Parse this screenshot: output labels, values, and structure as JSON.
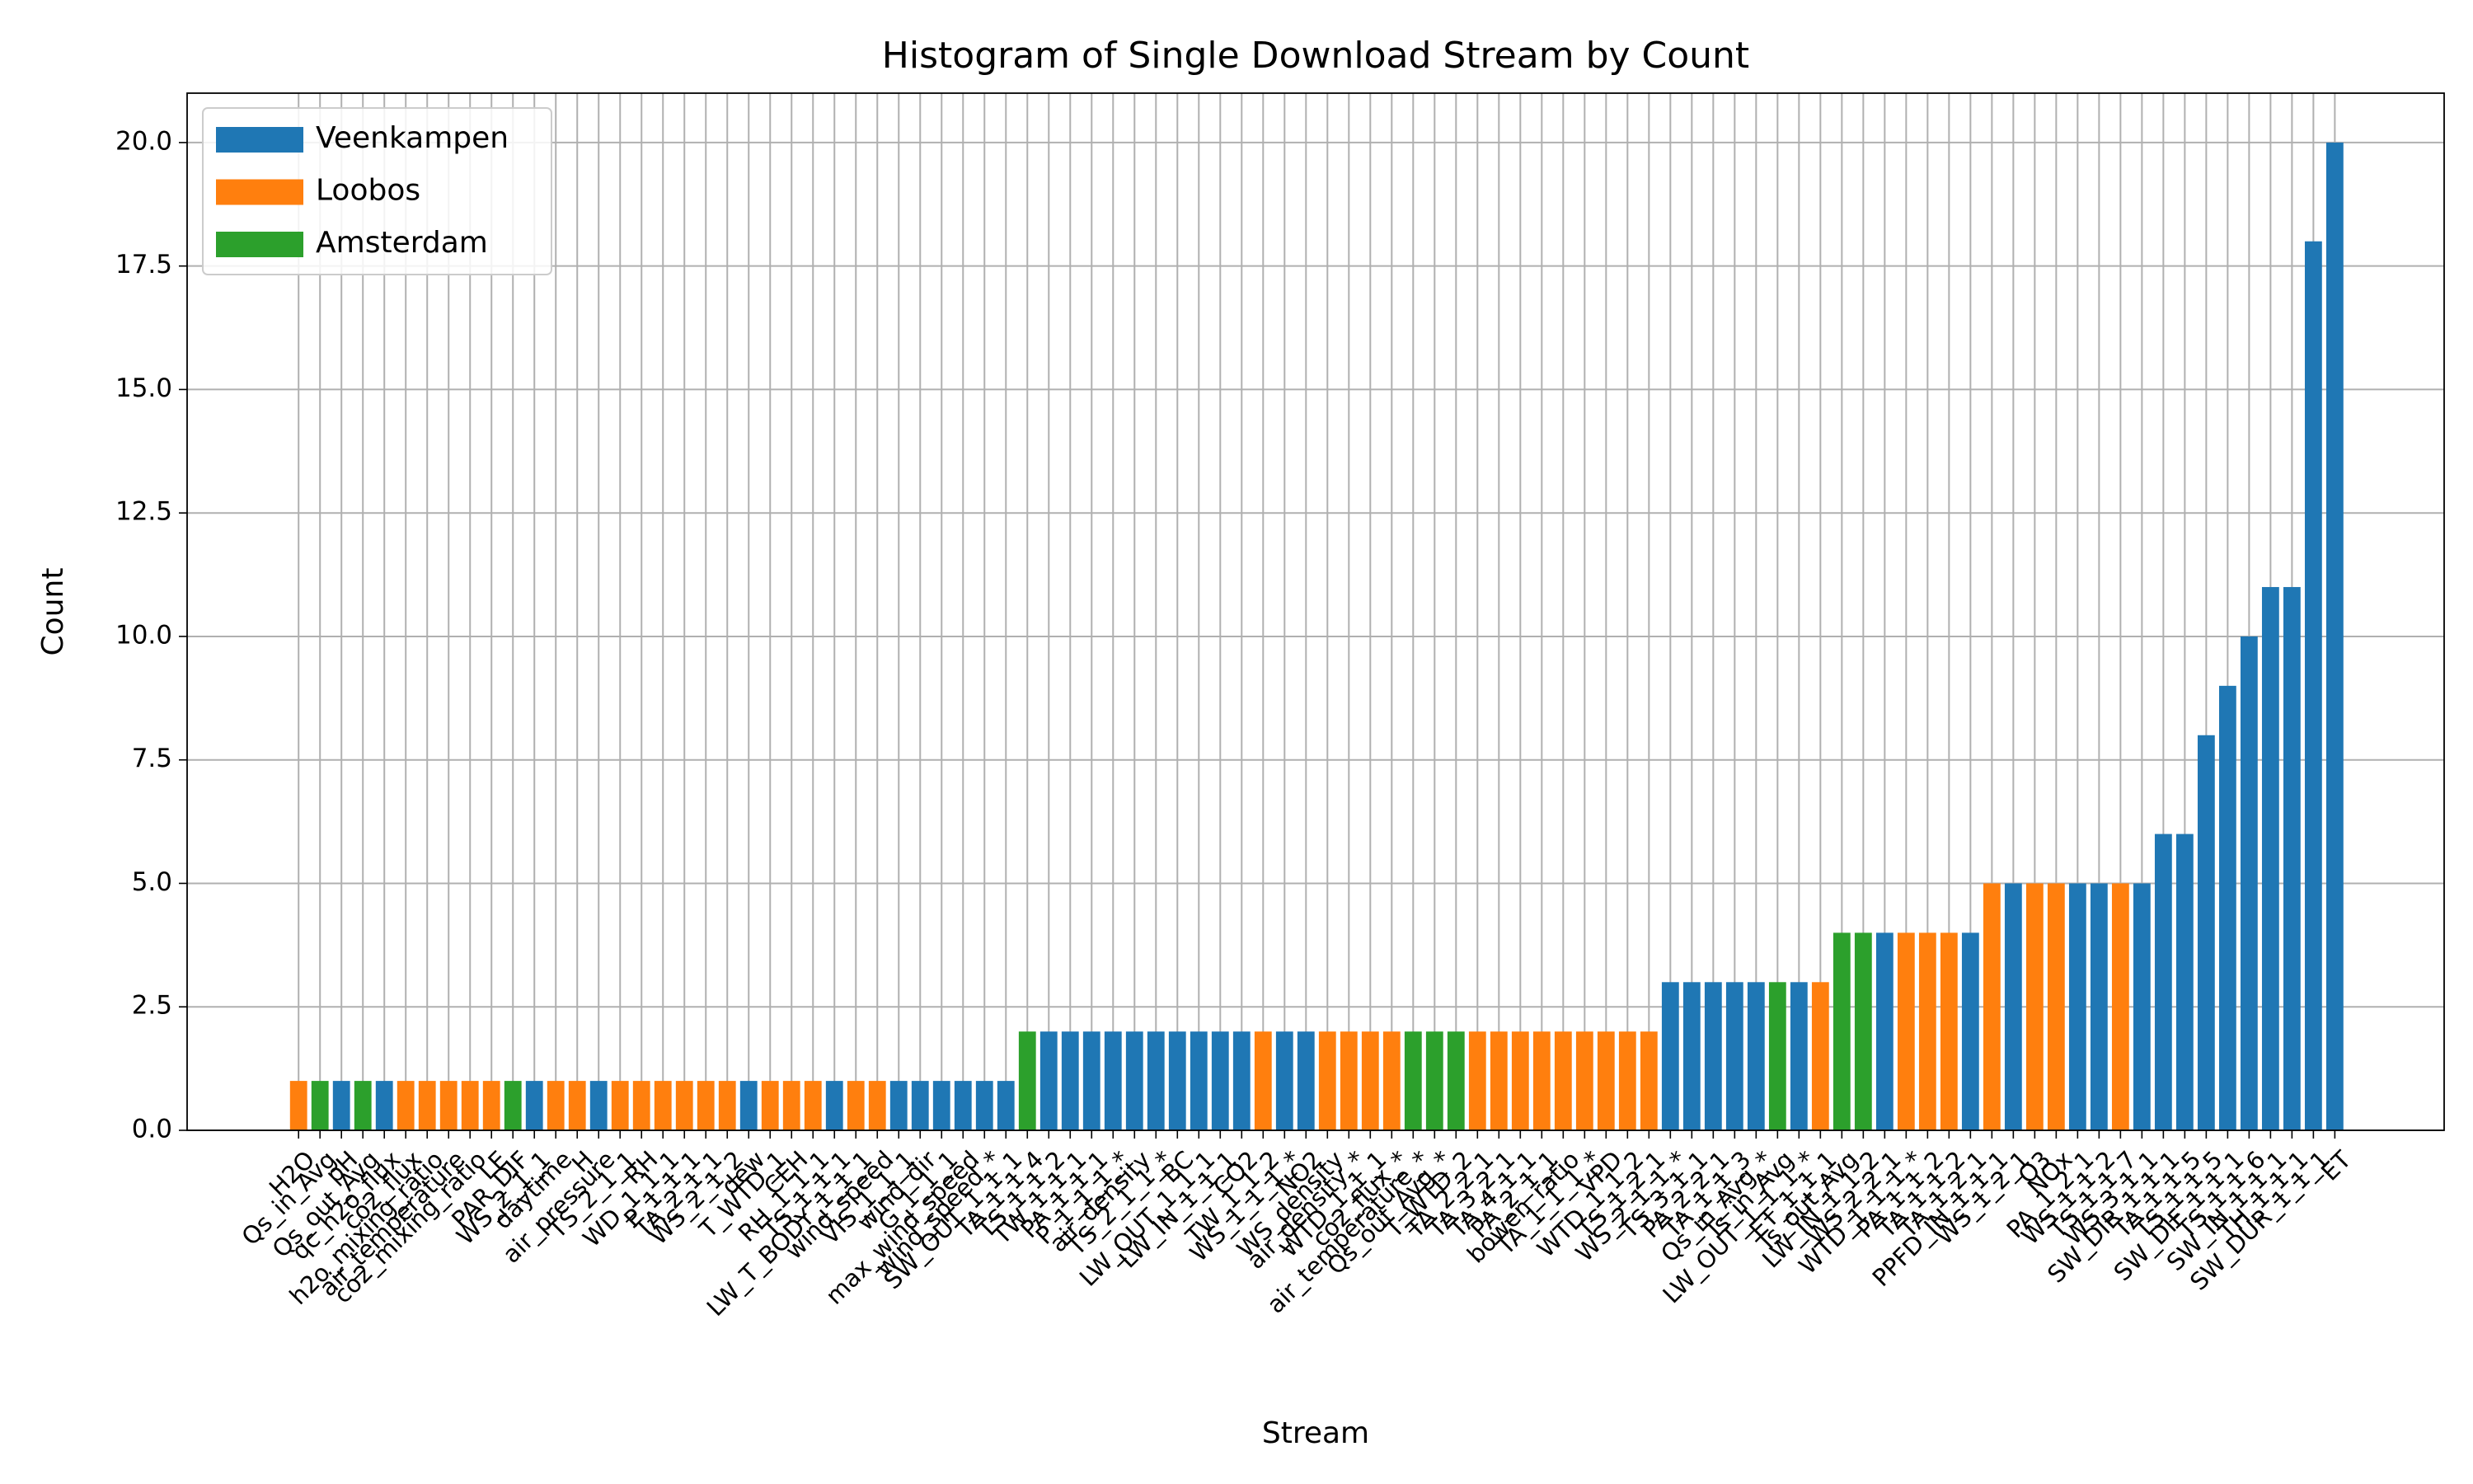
{
  "chart_data": {
    "type": "bar",
    "title": "Histogram of Single Download Stream by Count",
    "x_label": "Stream",
    "y_label": "Count",
    "categories": [
      "H2O",
      "Qs_in_Avg",
      "pH",
      "Qs_out_Avg",
      "qc_h2o_flux",
      "co2_flux",
      "h2o_mixing_ratio",
      "air_temperature",
      "co2_mixing_ratio",
      "LE",
      "PAR_DIF",
      "WS_2_1_1",
      "daytime",
      "H",
      "air_pressure",
      "TS_2_1_1",
      "RH",
      "WD_1_1_1",
      "P_1_1_1",
      "TA_2_1_1",
      "WS_2_1_2",
      "dew",
      "T_WTD_1",
      "CEH",
      "RH_1_1_1",
      "TS_1_1_1",
      "LW_T_BODY_1_1_1",
      "wind_speed",
      "VIS_1_1_1",
      "wind_dir",
      "G_1_1_1",
      "max_wind_speed",
      "wind_speed_*",
      "SW_OUT_1_1_1",
      "TA_1_1_4",
      "TS_1_1_2",
      "TW_1_1_1",
      "PA_1_1_1",
      "P_1_1_1_*",
      "air_density",
      "TS_2_1_1_*",
      "BC",
      "LW_OUT_1_1_1",
      "LW_IN_1_1_1",
      "CO2",
      "TW_1_1_2",
      "WS_1_1_1_*",
      "NO2",
      "WS_density",
      "air_density_*",
      "WTD_1_1_1",
      "co2_flux_*",
      "air_temperature_*",
      "Qs_out_Avg_*",
      "T_WTD_2",
      "TA_2_2_1",
      "TA_3_2_1",
      "TA_4_1_1",
      "PA_2_1_1",
      "bowen_ratio",
      "TA_1_1_1_*",
      "VPD",
      "WTD_1_1_2",
      "TS_1_2_1",
      "WS_2_1_1_*",
      "TS_3_1_1",
      "PA_2_2_1",
      "TA_1_1_3",
      "Qs_in_Avg_*",
      "Ts_in_Avg",
      "LW_OUT_1_1_1_*",
      "ET_1_1_1",
      "Ts_out_Avg",
      "LW_IN_1_1_2",
      "WS_2_2_1",
      "WTD_1_1_1_*",
      "PA_1_1_2",
      "TA_1_1_2",
      "TA_1_2_1",
      "PPFD_IN_1_1_1",
      "WS_1_2_1",
      "O3",
      "NOx",
      "PA_1_2_1",
      "WS_1_1_2",
      "TS_1_1_7",
      "WS_3_1_1",
      "SW_DIR_1_1_1",
      "TA_1_1_5",
      "TS_1_1_5",
      "SW_DIF_1_1_1",
      "TS_1_1_6",
      "SW_IN_1_1_1",
      "TH_1_1_1",
      "SW_DUR_1_1_1",
      "ET"
    ],
    "series": [
      {
        "name": "Veenkampen",
        "color": "#1f77b4",
        "values": [
          null,
          null,
          1,
          null,
          1,
          null,
          null,
          null,
          null,
          null,
          null,
          1,
          null,
          null,
          1,
          null,
          null,
          null,
          null,
          null,
          null,
          1,
          null,
          null,
          null,
          1,
          null,
          null,
          1,
          1,
          1,
          1,
          1,
          1,
          null,
          2,
          2,
          2,
          2,
          2,
          2,
          2,
          2,
          2,
          2,
          null,
          2,
          2,
          null,
          null,
          null,
          null,
          null,
          null,
          null,
          null,
          null,
          null,
          null,
          null,
          null,
          null,
          null,
          null,
          3,
          3,
          3,
          3,
          3,
          null,
          3,
          null,
          null,
          null,
          4,
          null,
          null,
          null,
          4,
          null,
          5,
          null,
          null,
          5,
          5,
          null,
          5,
          6,
          6,
          8,
          9,
          10,
          11,
          11,
          18,
          20
        ]
      },
      {
        "name": "Loobos",
        "color": "#ff7f0e",
        "values": [
          1,
          null,
          null,
          null,
          null,
          1,
          1,
          1,
          1,
          1,
          null,
          null,
          1,
          1,
          null,
          1,
          1,
          1,
          1,
          1,
          1,
          null,
          1,
          1,
          1,
          null,
          1,
          1,
          null,
          null,
          null,
          null,
          null,
          null,
          null,
          null,
          null,
          null,
          null,
          null,
          null,
          null,
          null,
          null,
          null,
          2,
          null,
          null,
          2,
          2,
          2,
          2,
          null,
          null,
          null,
          2,
          2,
          2,
          2,
          2,
          2,
          2,
          2,
          2,
          null,
          null,
          null,
          null,
          null,
          null,
          null,
          3,
          null,
          null,
          null,
          4,
          4,
          4,
          null,
          5,
          null,
          5,
          5,
          null,
          null,
          5,
          null,
          null,
          null,
          null,
          null,
          null,
          null,
          null,
          null,
          null
        ]
      },
      {
        "name": "Amsterdam",
        "color": "#2ca02c",
        "values": [
          null,
          1,
          null,
          1,
          null,
          null,
          null,
          null,
          null,
          null,
          1,
          null,
          null,
          null,
          null,
          null,
          null,
          null,
          null,
          null,
          null,
          null,
          null,
          null,
          null,
          null,
          null,
          null,
          null,
          null,
          null,
          null,
          null,
          null,
          2,
          null,
          null,
          null,
          null,
          null,
          null,
          null,
          null,
          null,
          null,
          null,
          null,
          null,
          null,
          null,
          null,
          null,
          2,
          2,
          2,
          null,
          null,
          null,
          null,
          null,
          null,
          null,
          null,
          null,
          null,
          null,
          null,
          null,
          null,
          3,
          null,
          null,
          4,
          4,
          null,
          null,
          null,
          null,
          null,
          null,
          null,
          null,
          null,
          null,
          null,
          null,
          null,
          null,
          null,
          null,
          null,
          null,
          null,
          null,
          null,
          null
        ]
      }
    ],
    "ylim": [
      0,
      21
    ],
    "yticks": [
      {
        "value": 0,
        "label": "0.0"
      },
      {
        "value": 2.5,
        "label": "2.5"
      },
      {
        "value": 5,
        "label": "5.0"
      },
      {
        "value": 7.5,
        "label": "7.5"
      },
      {
        "value": 10,
        "label": "10.0"
      },
      {
        "value": 12.5,
        "label": "12.5"
      },
      {
        "value": 15,
        "label": "15.0"
      },
      {
        "value": 17.5,
        "label": "17.5"
      },
      {
        "value": 20,
        "label": "20.0"
      }
    ],
    "grid": true,
    "legend_position": "upper-left"
  }
}
